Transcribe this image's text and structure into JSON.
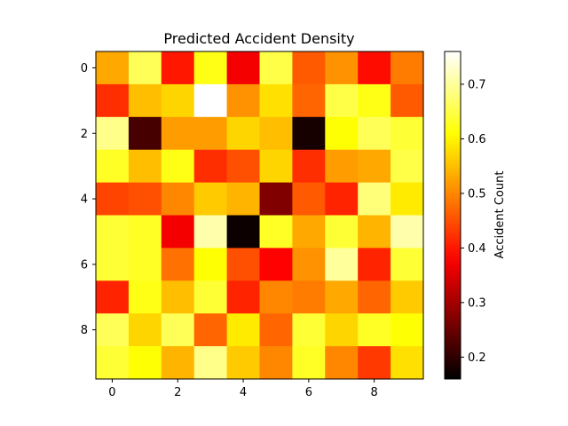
{
  "chart_data": {
    "type": "heatmap",
    "title": "Predicted Accident Density",
    "xlabel": "",
    "ylabel": "",
    "colormap": "hot",
    "x_ticks": [
      "0",
      "2",
      "4",
      "6",
      "8"
    ],
    "y_ticks": [
      "0",
      "2",
      "4",
      "6",
      "8"
    ],
    "x_range": [
      -0.5,
      9.5
    ],
    "y_range": [
      -0.5,
      9.5
    ],
    "values": [
      [
        0.53,
        0.66,
        0.4,
        0.62,
        0.37,
        0.65,
        0.46,
        0.51,
        0.39,
        0.49
      ],
      [
        0.42,
        0.55,
        0.57,
        0.76,
        0.51,
        0.58,
        0.47,
        0.65,
        0.62,
        0.46
      ],
      [
        0.69,
        0.22,
        0.52,
        0.52,
        0.57,
        0.55,
        0.18,
        0.61,
        0.66,
        0.64
      ],
      [
        0.63,
        0.55,
        0.62,
        0.42,
        0.45,
        0.57,
        0.42,
        0.52,
        0.53,
        0.65
      ],
      [
        0.44,
        0.45,
        0.5,
        0.56,
        0.54,
        0.27,
        0.46,
        0.41,
        0.68,
        0.59
      ],
      [
        0.64,
        0.63,
        0.37,
        0.71,
        0.17,
        0.63,
        0.53,
        0.64,
        0.54,
        0.71
      ],
      [
        0.64,
        0.63,
        0.48,
        0.61,
        0.45,
        0.38,
        0.51,
        0.7,
        0.41,
        0.64
      ],
      [
        0.41,
        0.62,
        0.55,
        0.64,
        0.41,
        0.5,
        0.49,
        0.53,
        0.47,
        0.56
      ],
      [
        0.66,
        0.57,
        0.66,
        0.47,
        0.59,
        0.47,
        0.64,
        0.57,
        0.63,
        0.61
      ],
      [
        0.64,
        0.61,
        0.54,
        0.69,
        0.56,
        0.5,
        0.63,
        0.5,
        0.43,
        0.58
      ]
    ],
    "colorbar": {
      "label": "Accident Count",
      "range": [
        0.16,
        0.76
      ],
      "ticks": [
        "0.2",
        "0.3",
        "0.4",
        "0.5",
        "0.6",
        "0.7"
      ],
      "tick_values": [
        0.2,
        0.3,
        0.4,
        0.5,
        0.6,
        0.7
      ]
    },
    "grid": false
  }
}
